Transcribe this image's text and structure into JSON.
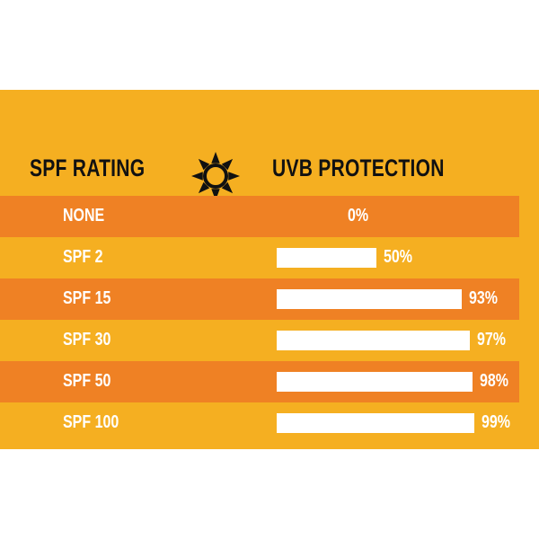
{
  "header": {
    "left_label": "SPF RATING",
    "right_label": "UVB PROTECTION",
    "icon": "sun-icon"
  },
  "colors": {
    "background": "#f5af21",
    "stripe": "#ef8124",
    "bar": "#ffffff",
    "header_text": "#111111"
  },
  "chart_data": {
    "type": "bar",
    "orientation": "horizontal",
    "title": "",
    "xlabel": "UVB PROTECTION",
    "ylabel": "SPF RATING",
    "categories": [
      "NONE",
      "SPF 2",
      "SPF 15",
      "SPF 30",
      "SPF 50",
      "SPF 100"
    ],
    "values": [
      0,
      50,
      93,
      97,
      98,
      99
    ],
    "value_labels": [
      "0%",
      "50%",
      "93%",
      "97%",
      "98%",
      "99%"
    ],
    "xlim": [
      0,
      100
    ],
    "grid": false,
    "legend": "none"
  }
}
